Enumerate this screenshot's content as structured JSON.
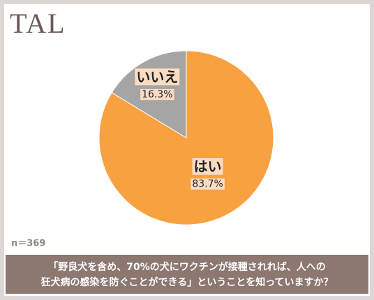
{
  "logo": "TAL",
  "chart_data": {
    "type": "pie",
    "categories": [
      "はい",
      "いいえ"
    ],
    "values": [
      83.7,
      16.3
    ],
    "value_labels": [
      "83.7%",
      "16.3%"
    ],
    "colors": [
      "#f8a141",
      "#a5a5a5"
    ],
    "start_angle": 0,
    "direction": "clockwise",
    "note": "n＝369"
  },
  "caption": {
    "lines": [
      "「野良犬を含め、70%の犬にワクチンが接種されれば、人への",
      "狂犬病の感染を防ぐことができる」ということを知っていますか？"
    ]
  }
}
